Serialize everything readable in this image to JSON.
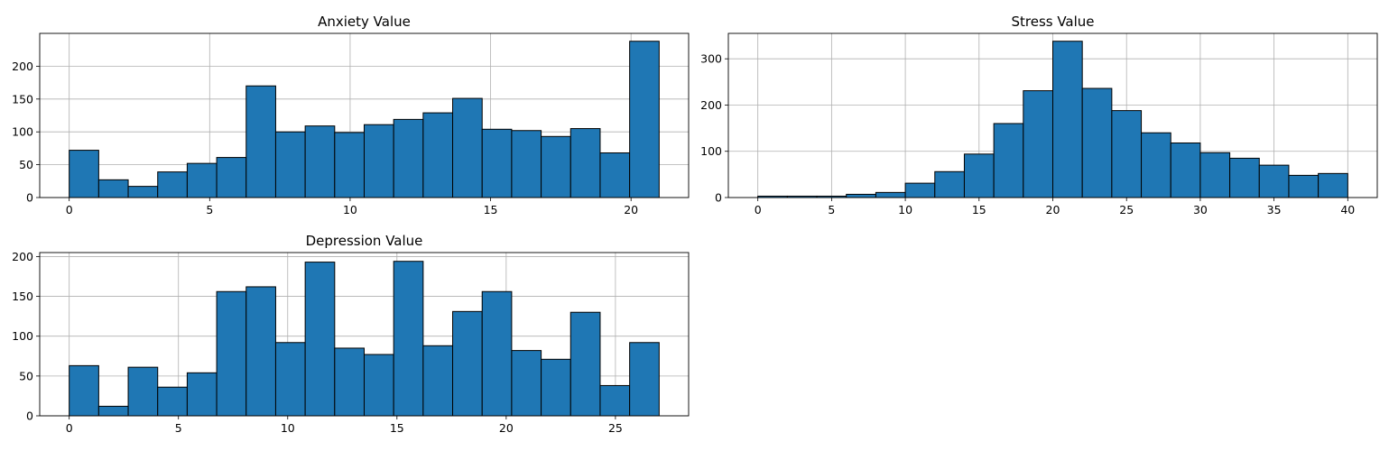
{
  "chart_data": [
    {
      "type": "bar",
      "title": "Anxiety Value",
      "bar_color": "#1f77b4",
      "grid": true,
      "xlim": [
        -1.05,
        22.05
      ],
      "ylim": [
        0,
        250
      ],
      "xticks": [
        0,
        5,
        10,
        15,
        20
      ],
      "yticks": [
        0,
        50,
        100,
        150,
        200
      ],
      "bin_edges": [
        0,
        1.05,
        2.1,
        3.15,
        4.2,
        5.25,
        6.3,
        7.35,
        8.4,
        9.45,
        10.5,
        11.55,
        12.6,
        13.65,
        14.7,
        15.75,
        16.8,
        17.85,
        18.9,
        19.95,
        21
      ],
      "values": [
        72,
        27,
        17,
        39,
        52,
        61,
        170,
        100,
        109,
        99,
        111,
        119,
        129,
        151,
        104,
        102,
        93,
        105,
        68,
        238
      ]
    },
    {
      "type": "bar",
      "title": "Stress Value",
      "bar_color": "#1f77b4",
      "grid": true,
      "xlim": [
        -2,
        42
      ],
      "ylim": [
        0,
        355
      ],
      "xticks": [
        0,
        5,
        10,
        15,
        20,
        25,
        30,
        35,
        40
      ],
      "yticks": [
        0,
        100,
        200,
        300
      ],
      "bin_edges": [
        0,
        2,
        4,
        6,
        8,
        10,
        12,
        14,
        16,
        18,
        20,
        22,
        24,
        26,
        28,
        30,
        32,
        34,
        36,
        38,
        40
      ],
      "values": [
        3,
        3,
        3,
        7,
        11,
        31,
        56,
        94,
        160,
        231,
        338,
        236,
        188,
        140,
        118,
        97,
        85,
        70,
        48,
        52
      ]
    },
    {
      "type": "bar",
      "title": "Depression Value",
      "bar_color": "#1f77b4",
      "grid": true,
      "xlim": [
        -1.35,
        28.35
      ],
      "ylim": [
        0,
        205
      ],
      "xticks": [
        0,
        5,
        10,
        15,
        20,
        25
      ],
      "yticks": [
        0,
        50,
        100,
        150,
        200
      ],
      "bin_edges": [
        0,
        1.35,
        2.7,
        4.05,
        5.4,
        6.75,
        8.1,
        9.45,
        10.8,
        12.15,
        13.5,
        14.85,
        16.2,
        17.55,
        18.9,
        20.25,
        21.6,
        22.95,
        24.3,
        25.65,
        27
      ],
      "values": [
        63,
        12,
        61,
        36,
        54,
        156,
        162,
        92,
        193,
        85,
        77,
        194,
        88,
        131,
        156,
        82,
        71,
        130,
        38,
        92
      ]
    }
  ]
}
